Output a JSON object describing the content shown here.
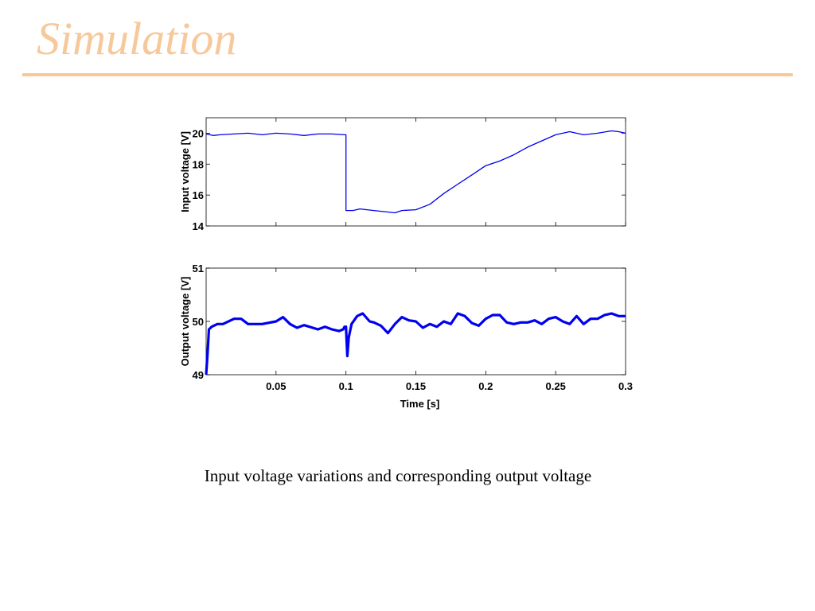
{
  "slide": {
    "title": "Simulation",
    "caption": "Input voltage variations and corresponding output voltage",
    "accent_color": "#f6c89a"
  },
  "chart_data": [
    {
      "type": "line",
      "id": "input",
      "xlabel": "",
      "ylabel": "Input voltage [V]",
      "xlim": [
        0,
        0.3
      ],
      "ylim": [
        14,
        21
      ],
      "yticks": [
        14,
        16,
        18,
        20
      ],
      "xticks": [
        0.05,
        0.1,
        0.15,
        0.2,
        0.25,
        0.3
      ],
      "show_xtick_labels": false,
      "grid": false,
      "line_color": "#0000ee",
      "series": [
        {
          "x": [
            0,
            0.005,
            0.01,
            0.02,
            0.03,
            0.04,
            0.05,
            0.06,
            0.07,
            0.08,
            0.09,
            0.099,
            0.1,
            0.1,
            0.105,
            0.11,
            0.12,
            0.13,
            0.135,
            0.14,
            0.15,
            0.16,
            0.17,
            0.18,
            0.19,
            0.2,
            0.21,
            0.22,
            0.23,
            0.24,
            0.25,
            0.26,
            0.27,
            0.28,
            0.29,
            0.295,
            0.3
          ],
          "y": [
            19.95,
            19.85,
            19.9,
            19.95,
            20.0,
            19.9,
            20.0,
            19.95,
            19.85,
            19.95,
            19.95,
            19.9,
            19.9,
            15.0,
            15.0,
            15.1,
            15.0,
            14.9,
            14.85,
            15.0,
            15.05,
            15.4,
            16.1,
            16.7,
            17.3,
            17.9,
            18.2,
            18.6,
            19.1,
            19.5,
            19.9,
            20.1,
            19.9,
            20.0,
            20.15,
            20.1,
            20.0
          ]
        }
      ]
    },
    {
      "type": "line",
      "id": "output",
      "xlabel": "Time [s]",
      "ylabel": "Output voltage [V]",
      "xlim": [
        0,
        0.3
      ],
      "ylim": [
        49,
        51
      ],
      "yticks": [
        49,
        50,
        51
      ],
      "xticks": [
        0.05,
        0.1,
        0.15,
        0.2,
        0.25,
        0.3
      ],
      "xtick_labels": [
        "0.05",
        "0.1",
        "0.15",
        "0.2",
        "0.25",
        "0.3"
      ],
      "show_xtick_labels": true,
      "grid": false,
      "line_color": "#0000ee",
      "series": [
        {
          "x": [
            0,
            0.001,
            0.002,
            0.004,
            0.008,
            0.012,
            0.02,
            0.025,
            0.03,
            0.04,
            0.05,
            0.055,
            0.06,
            0.065,
            0.07,
            0.08,
            0.085,
            0.09,
            0.095,
            0.098,
            0.099,
            0.1,
            0.101,
            0.102,
            0.104,
            0.108,
            0.112,
            0.117,
            0.12,
            0.125,
            0.13,
            0.135,
            0.14,
            0.145,
            0.15,
            0.155,
            0.16,
            0.165,
            0.17,
            0.175,
            0.18,
            0.185,
            0.19,
            0.195,
            0.2,
            0.205,
            0.21,
            0.215,
            0.22,
            0.225,
            0.23,
            0.235,
            0.24,
            0.245,
            0.25,
            0.255,
            0.26,
            0.265,
            0.27,
            0.275,
            0.28,
            0.285,
            0.29,
            0.295,
            0.3
          ],
          "y": [
            49.0,
            49.4,
            49.85,
            49.9,
            49.95,
            49.95,
            50.05,
            50.05,
            49.95,
            49.95,
            50.0,
            50.08,
            49.95,
            49.88,
            49.93,
            49.85,
            49.9,
            49.85,
            49.82,
            49.85,
            49.9,
            49.9,
            49.35,
            49.7,
            49.95,
            50.1,
            50.15,
            50.0,
            49.98,
            49.92,
            49.78,
            49.95,
            50.08,
            50.02,
            50.0,
            49.88,
            49.95,
            49.9,
            50.0,
            49.95,
            50.15,
            50.1,
            49.97,
            49.92,
            50.05,
            50.12,
            50.12,
            49.98,
            49.95,
            49.98,
            49.98,
            50.02,
            49.95,
            50.05,
            50.08,
            50.0,
            49.95,
            50.1,
            49.95,
            50.05,
            50.05,
            50.12,
            50.15,
            50.1,
            50.1
          ]
        }
      ]
    }
  ]
}
